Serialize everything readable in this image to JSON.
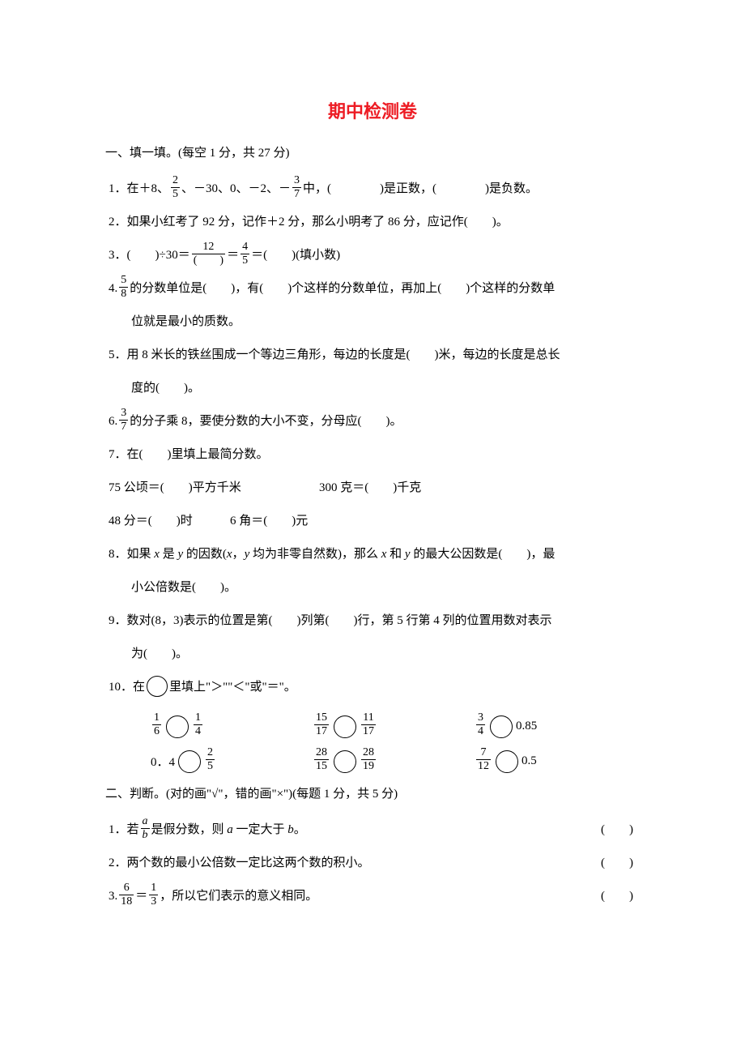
{
  "colors": {
    "title": "#ed1c24",
    "text": "#000000",
    "background": "#ffffff"
  },
  "title": "期中检测卷",
  "section1": {
    "header": "一、填一填。(每空 1 分，共 27 分)",
    "q1_a": "1．在＋8、",
    "q1_frac1_num": "2",
    "q1_frac1_den": "5",
    "q1_b": "、－30、0、－2、－",
    "q1_frac2_num": "3",
    "q1_frac2_den": "7",
    "q1_c": "中，(　　　　)是正数，(　　　　)是负数。",
    "q2": "2．如果小红考了 92 分，记作＋2 分，那么小明考了 86 分，应记作(　　)。",
    "q3_a": "3．(　　)÷30＝",
    "q3_frac1_num": "12",
    "q3_frac1_den": "(　　)",
    "q3_b": "＝",
    "q3_frac2_num": "4",
    "q3_frac2_den": "5",
    "q3_c": "＝(　　)(填小数)",
    "q4_a": "4.",
    "q4_frac_num": "5",
    "q4_frac_den": "8",
    "q4_b": "的分数单位是(　　)，有(　　)个这样的分数单位，再加上(　　)个这样的分数单",
    "q4_c": "位就是最小的质数。",
    "q5_a": "5．用 8 米长的铁丝围成一个等边三角形，每边的长度是(　　)米，每边的长度是总长",
    "q5_b": "度的(　　)。",
    "q6_a": "6.",
    "q6_frac_num": "3",
    "q6_frac_den": "7",
    "q6_b": "的分子乘 8，要使分数的大小不变，分母应(　　)。",
    "q7": "7．在(　　)里填上最简分数。",
    "q7_row1_a": "75 公顷＝(　　)平方千米",
    "q7_row1_b": "300 克＝(　　)千克",
    "q7_row2_a": "48 分＝(　　)时",
    "q7_row2_b": "6 角＝(　　)元",
    "q8_a": "8．如果 x 是 y 的因数(x，y 均为非零自然数)，那么 x 和 y 的最大公因数是(　　)，最",
    "q8_b": "小公倍数是(　　)。",
    "q9_a": "9．数对(8，3)表示的位置是第(　　)列第(　　)行，第 5 行第 4 列的位置用数对表示",
    "q9_b": "为(　　)。",
    "q10_a": "10．在",
    "q10_b": "里填上\"＞\"\"＜\"或\"＝\"。",
    "comp": [
      [
        {
          "l_num": "1",
          "l_den": "6",
          "r_num": "1",
          "r_den": "4"
        },
        {
          "l_num": "15",
          "l_den": "17",
          "r_num": "11",
          "r_den": "17"
        },
        {
          "l_num": "3",
          "l_den": "4",
          "r_text": "0.85"
        }
      ],
      [
        {
          "l_text": "0．4",
          "r_num": "2",
          "r_den": "5"
        },
        {
          "l_num": "28",
          "l_den": "15",
          "r_num": "28",
          "r_den": "19"
        },
        {
          "l_num": "7",
          "l_den": "12",
          "r_text": "0.5"
        }
      ]
    ]
  },
  "section2": {
    "header": "二、判断。(对的画\"√\"，错的画\"×\")(每题 1 分，共 5 分)",
    "q1_a": "1．若",
    "q1_frac_num": "a",
    "q1_frac_den": "b",
    "q1_b": "是假分数，则 a 一定大于 b。",
    "q2": "2．两个数的最小公倍数一定比这两个数的积小。",
    "q3_a": "3.",
    "q3_frac1_num": "6",
    "q3_frac1_den": "18",
    "q3_b": "＝",
    "q3_frac2_num": "1",
    "q3_frac2_den": "3",
    "q3_c": "，所以它们表示的意义相同。",
    "paren": "(　　)"
  }
}
